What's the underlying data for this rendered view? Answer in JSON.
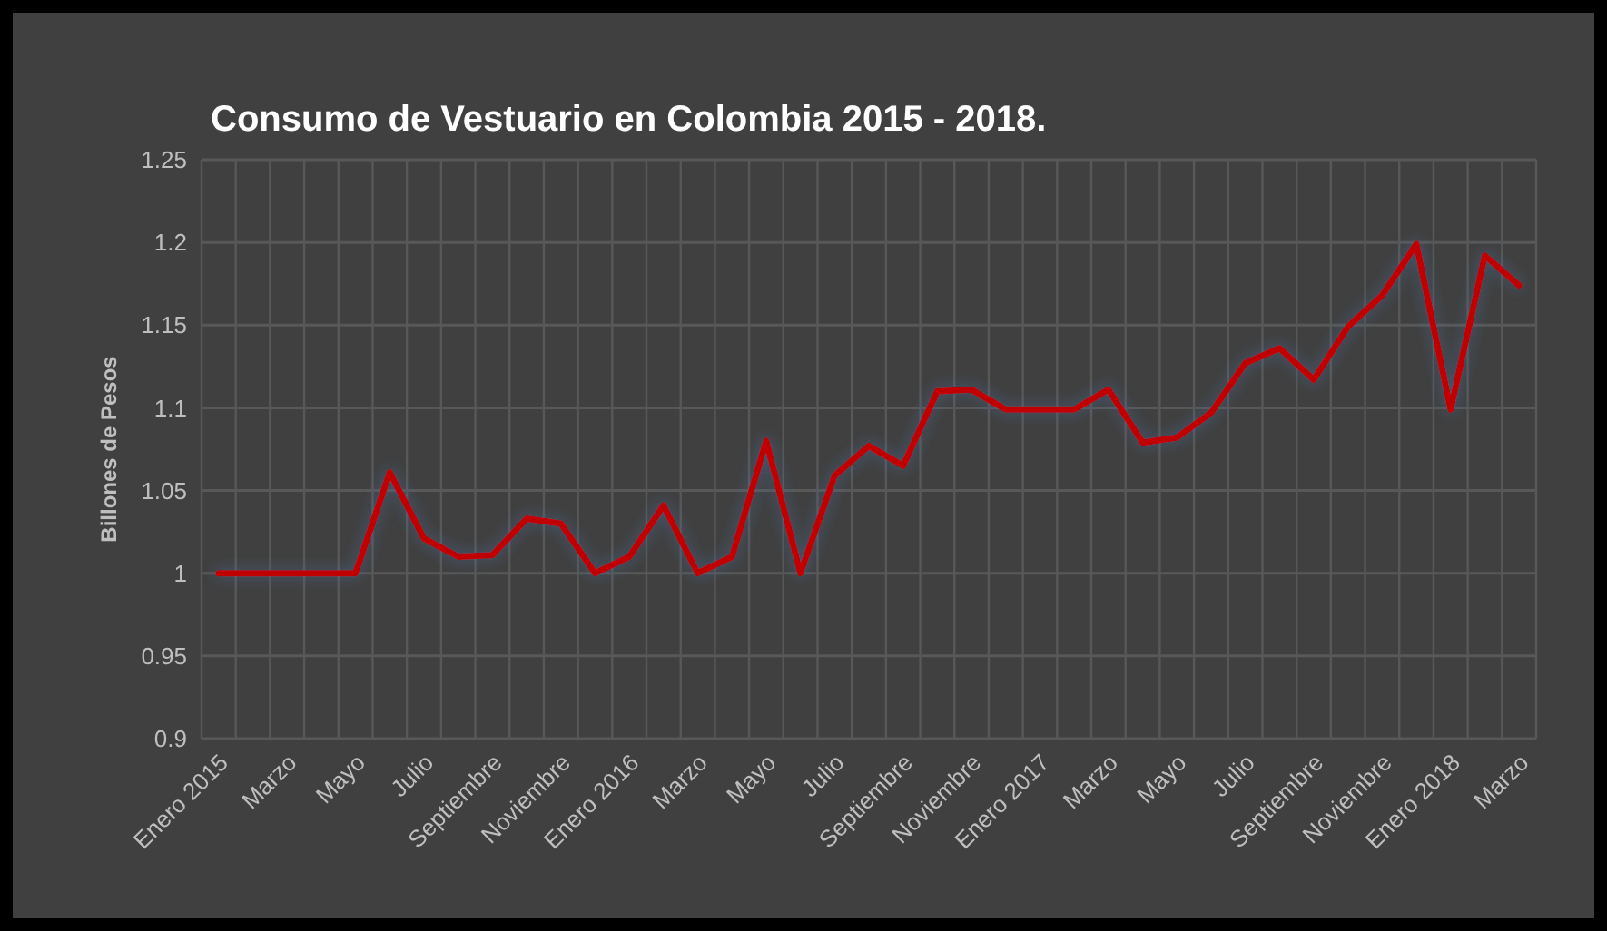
{
  "chart_data": {
    "type": "line",
    "title": "Consumo de Vestuario en Colombia 2015 - 2018.",
    "ylabel": "Billones de Pesos",
    "categories": [
      "Enero 2015",
      null,
      "Marzo",
      null,
      "Mayo",
      null,
      "Julio",
      null,
      "Septiembre",
      null,
      "Noviembre",
      null,
      "Enero 2016",
      null,
      "Marzo",
      null,
      "Mayo",
      null,
      "Julio",
      null,
      "Septiembre",
      null,
      "Noviembre",
      null,
      "Enero 2017",
      null,
      "Marzo",
      null,
      "Mayo",
      null,
      "Julio",
      null,
      "Septiembre",
      null,
      "Noviembre",
      null,
      "Enero 2018",
      null,
      "Marzo"
    ],
    "series": [
      {
        "color": "#c00000",
        "values": [
          1.0,
          1.0,
          1.0,
          1.0,
          1.0,
          1.061,
          1.021,
          1.01,
          1.011,
          1.033,
          1.03,
          1.0,
          1.01,
          1.041,
          1.0,
          1.01,
          1.08,
          1.0,
          1.059,
          1.077,
          1.065,
          1.11,
          1.111,
          1.099,
          1.099,
          1.099,
          1.111,
          1.079,
          1.082,
          1.097,
          1.127,
          1.136,
          1.117,
          1.149,
          1.168,
          1.199,
          1.099,
          1.192,
          1.174
        ]
      }
    ],
    "ylim": [
      0.9,
      1.25
    ],
    "yticks": [
      0.9,
      0.95,
      1,
      1.05,
      1.1,
      1.15,
      1.2,
      1.25
    ],
    "grid": true,
    "marker": "none",
    "line_style": "solid"
  }
}
